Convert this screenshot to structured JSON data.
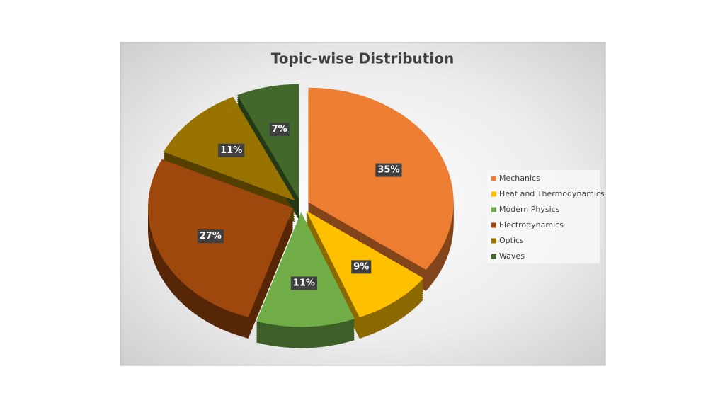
{
  "chart_data": {
    "type": "pie",
    "title": "Topic-wise Distribution",
    "categories": [
      "Mechanics",
      "Heat and Thermodynamics",
      "Modern Physics",
      "Electrodynamics",
      "Optics",
      "Waves"
    ],
    "values": [
      35,
      9,
      11,
      27,
      11,
      7
    ],
    "value_labels": [
      "35%",
      "9%",
      "11%",
      "27%",
      "11%",
      "7%"
    ],
    "colors": [
      "#ed7d31",
      "#ffc000",
      "#70ad47",
      "#9e480e",
      "#997300",
      "#43682b"
    ],
    "legend": "right"
  }
}
